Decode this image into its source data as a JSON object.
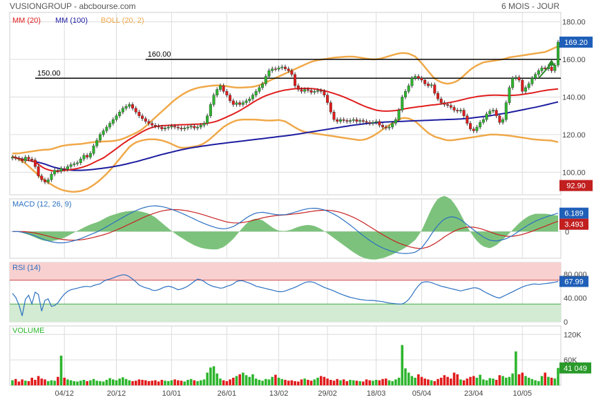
{
  "header": {
    "left": "VUSIONGROUP - abcbourse.com",
    "right": "6 MOIS - JOUR"
  },
  "colors": {
    "up": "#2db52d",
    "down": "#e01c1c",
    "mm20": "#e01c1c",
    "mm100": "#1c1ca0",
    "boll": "#f0a848",
    "macd": "#2a6fc0",
    "signal": "#c82020",
    "hist": "#7cc27c",
    "rsi": "#2a6fc0",
    "grid": "#dcdcdc",
    "axisText": "#444444",
    "price_badge": "#1f5fb8",
    "low_badge": "#c21f1f",
    "arrow": "#2a8a2a"
  },
  "chart_data": [
    {
      "type": "candlestick",
      "panel": "price",
      "legend": [
        {
          "label": "MM (20)",
          "color": "#e01c1c"
        },
        {
          "label": "MM (100)",
          "color": "#1c1ca0"
        },
        {
          "label": "BOLL (20, 2)",
          "color": "#f0a848"
        }
      ],
      "yticks": [
        "180.00",
        "160.00",
        "140.00",
        "120.00",
        "100.00"
      ],
      "ytick_values": [
        180,
        160,
        140,
        120,
        100
      ],
      "ylim": [
        88,
        185
      ],
      "last_label": "169.20",
      "last_value": 169.2,
      "low_label": "92.90",
      "low_value": 92.9,
      "hlines": [
        {
          "label": "160.00",
          "value": 160,
          "start_index": 41
        },
        {
          "label": "150.00",
          "value": 150,
          "start_index": 7
        }
      ],
      "arrow": {
        "from_index": 162,
        "from_value": 150,
        "to_index": 166,
        "to_value": 160
      },
      "closes": [
        108,
        107.5,
        107,
        106,
        108,
        107,
        106.5,
        103,
        98,
        96,
        94.8,
        96,
        99,
        101,
        100.5,
        102,
        101.5,
        103,
        104,
        104.5,
        105,
        107,
        109,
        108,
        110,
        114,
        117,
        120,
        122,
        124,
        126,
        128,
        130,
        132,
        134,
        135,
        136,
        134,
        132,
        130,
        128.5,
        127,
        126,
        125,
        124.5,
        124,
        123,
        123.5,
        124,
        124.5,
        124,
        123.5,
        123,
        123.5,
        124,
        124.5,
        123.5,
        124,
        125,
        126,
        130,
        136,
        141,
        144,
        146,
        143,
        141,
        138,
        136,
        137,
        136,
        137,
        138,
        139,
        141,
        143,
        145,
        147,
        151,
        154,
        155,
        154.8,
        155.5,
        156,
        155,
        154,
        152,
        146,
        144,
        143,
        144,
        143.5,
        142.5,
        143,
        143.5,
        143,
        141,
        137,
        132,
        128,
        127,
        128,
        127.5,
        127,
        127.5,
        128,
        127,
        127.5,
        127,
        126.5,
        126,
        126.5,
        127,
        125,
        124,
        123.5,
        124,
        126,
        128,
        133,
        140,
        143,
        146,
        150,
        151,
        150,
        149,
        147,
        146,
        146.5,
        142,
        139,
        137,
        136,
        135.5,
        134.5,
        133,
        132.5,
        133,
        130,
        126,
        123,
        122,
        124,
        126.5,
        128,
        131,
        132.5,
        133,
        130,
        126.5,
        128,
        137,
        145,
        150,
        150.5,
        149,
        143,
        145,
        147,
        150,
        152,
        154,
        155.5,
        155,
        156,
        154,
        157,
        169.2
      ],
      "ma20": [
        108,
        107.6,
        107.2,
        106.6,
        106.4,
        106.1,
        105.5,
        104,
        102.5,
        101.5,
        101,
        100.5,
        100.5,
        100.8,
        101,
        101.3,
        101.5,
        101.9,
        102.4,
        103,
        103.7,
        104.6,
        105.7,
        106.6,
        107.6,
        109,
        110.4,
        111.9,
        113.4,
        114.9,
        116.3,
        117.6,
        118.8,
        120,
        121.2,
        122.3,
        123.2,
        123.9,
        124.4,
        124.7,
        124.8,
        124.9,
        125,
        125.1,
        125.2,
        125.3,
        125.3,
        125.4,
        125.5,
        125.6,
        125.7,
        125.9,
        126.2,
        126.6,
        127.2,
        128,
        128.9,
        129.8,
        130.7,
        131.7,
        132.8,
        134,
        135.2,
        136.5,
        137.8,
        138.9,
        139.9,
        140.8,
        141.5,
        142.2,
        142.8,
        143.3,
        143.7,
        144,
        144.3,
        144.5,
        144.6,
        144.6,
        144.6,
        144.5,
        144.3,
        143.9,
        143.5,
        143,
        142.4,
        141.8,
        141.1,
        140.4,
        139.6,
        138.7,
        137.8,
        136.8,
        135.9,
        135,
        134.3,
        133.6,
        133,
        132.7,
        132.5,
        132.5,
        132.6,
        132.8,
        133.1,
        133.5,
        133.9,
        134.2,
        134.5,
        134.8,
        135,
        135.3,
        135.6,
        135.8,
        136,
        136.3,
        136.6,
        136.9,
        137.3,
        137.7,
        138.2,
        138.7,
        139.2,
        139.6,
        140,
        140.4,
        140.6,
        140.8,
        140.9,
        141,
        141,
        140.9,
        140.8,
        140.8,
        140.9,
        141,
        141.2,
        141.5,
        141.8,
        142.1,
        142.5,
        142.9,
        143.3,
        143.6,
        143.9,
        144.1,
        144.3
      ],
      "ma100": [
        108,
        107.5,
        107,
        106.5,
        106,
        105.5,
        105,
        104.3,
        103.4,
        102.6,
        102,
        101.5,
        101.2,
        101,
        101,
        101,
        101.2,
        101.4,
        101.7,
        102,
        102.3,
        102.7,
        103.1,
        103.6,
        104.1,
        104.7,
        105.3,
        105.9,
        106.6,
        107.3,
        108,
        108.7,
        109.4,
        110,
        110.6,
        111.2,
        111.8,
        112.3,
        112.8,
        113.2,
        113.6,
        114,
        114.3,
        114.7,
        115,
        115.3,
        115.6,
        115.9,
        116.2,
        116.5,
        116.8,
        117.1,
        117.4,
        117.7,
        118,
        118.3,
        118.6,
        118.9,
        119.2,
        119.5,
        119.8,
        120.2,
        120.6,
        121,
        121.4,
        121.8,
        122.2,
        122.6,
        123,
        123.4,
        123.8,
        124.2,
        124.6,
        125,
        125.3,
        125.6,
        125.9,
        126.1,
        126.3,
        126.5,
        126.7,
        126.8,
        126.9,
        127,
        127.1,
        127.2,
        127.3,
        127.4,
        127.5,
        127.6,
        127.7,
        127.8,
        127.9,
        128,
        128.1,
        128.2,
        128.3,
        128.5,
        128.7,
        129,
        129.3,
        129.6,
        129.9,
        130.3,
        130.7,
        131.1,
        131.5,
        132,
        132.5,
        133,
        133.5,
        134,
        134.5,
        135,
        135.6,
        136.2,
        136.8,
        137.4
      ],
      "boll_upper": [
        110,
        110,
        110.5,
        111,
        111.5,
        112,
        112,
        113,
        114,
        114.5,
        114.8,
        115,
        115.5,
        116,
        116.2,
        116.4,
        116.5,
        117,
        118,
        119.5,
        121,
        123,
        126,
        129,
        132,
        135,
        138,
        140.5,
        142.5,
        144,
        145,
        145.5,
        146,
        146.2,
        146,
        145.5,
        145,
        145,
        145.2,
        145.5,
        146.5,
        148,
        149.5,
        151,
        152.5,
        154,
        155.5,
        157,
        158.5,
        159.5,
        160,
        160.5,
        161,
        161.2,
        161.5,
        161.5,
        161,
        160.5,
        160,
        160.2,
        161,
        162,
        163,
        163.5,
        163,
        161.5,
        158,
        154,
        150,
        148,
        147,
        147.5,
        149,
        152,
        155,
        157,
        158.5,
        159,
        159.5,
        160,
        161,
        161.5,
        162,
        162.5,
        163,
        163.5,
        164,
        165.5,
        167
      ],
      "boll_lower": [
        108.5,
        107,
        105,
        102,
        99,
        96,
        94,
        92,
        90.5,
        89.8,
        89.5,
        90,
        91,
        93,
        95.5,
        98.5,
        102,
        106,
        110,
        114,
        116,
        117,
        117.5,
        117.5,
        117,
        116,
        114.5,
        113,
        113,
        113.5,
        114,
        115.5,
        118,
        121,
        124,
        126,
        127.5,
        128,
        128,
        128,
        127.8,
        127.5,
        127.5,
        127.8,
        127,
        125,
        123,
        121.5,
        121,
        120.5,
        120,
        119.5,
        119,
        118.5,
        118,
        117.5,
        117,
        117.5,
        119,
        121,
        123.5,
        125.5,
        127.5,
        129,
        128.5,
        127,
        124,
        121,
        119,
        118,
        117,
        117,
        117.5,
        118,
        118.5,
        119,
        119.5,
        120,
        120,
        119.8,
        119.5,
        119,
        118.5,
        118,
        117.5,
        117.2,
        117,
        116.8,
        116
      ],
      "xlabels": [
        "04/12",
        "20/12",
        "10/01",
        "26/01",
        "13/02",
        "29/02",
        "18/03",
        "05/04",
        "23/04",
        "10/05"
      ],
      "xlabel_indices": [
        13,
        27,
        41,
        55,
        68,
        81,
        93,
        105,
        118,
        131
      ]
    },
    {
      "type": "line",
      "panel": "macd",
      "title": "MACD (12, 26, 9)",
      "last_macd_label": "6.189",
      "last_signal_label": "3.493",
      "zero_label": "0",
      "ylim": [
        -9,
        11
      ],
      "macd": [
        0,
        0,
        -0.3,
        -0.8,
        -1.5,
        -2.3,
        -3,
        -3.5,
        -3.8,
        -3.8,
        -3.5,
        -3,
        -2.4,
        -1.6,
        -0.8,
        0,
        1,
        2.1,
        3.2,
        4.3,
        5.4,
        6.4,
        7.3,
        8,
        8.5,
        8.7,
        8.5,
        8.1,
        7.5,
        6.8,
        6,
        5.1,
        4.2,
        3.3,
        2.5,
        1.8,
        1.2,
        0.9,
        1.1,
        1.8,
        3,
        4.4,
        5.6,
        6.3,
        6.5,
        6.2,
        5.8,
        5.6,
        5.7,
        6.1,
        6.7,
        7.3,
        7.7,
        7.9,
        7.7,
        7.2,
        6.4,
        5.4,
        4.2,
        2.8,
        1.3,
        -0.3,
        -1.8,
        -3.2,
        -4.4,
        -5.4,
        -6.2,
        -6.8,
        -7.2,
        -7.4,
        -7.3,
        -6.9,
        -5.5,
        -3,
        0,
        2.5,
        4.2,
        5,
        4.8,
        3.8,
        2.3,
        0.8,
        -0.7,
        -2,
        -2.9,
        -3.2,
        -2.9,
        -2.3,
        -1.3,
        0,
        1.3,
        2.5,
        3.5,
        4.3,
        5,
        5.6,
        6.189
      ],
      "signal": [
        0,
        0,
        0,
        -0.2,
        -0.5,
        -0.9,
        -1.4,
        -1.9,
        -2.4,
        -2.7,
        -2.9,
        -2.9,
        -2.8,
        -2.5,
        -2.1,
        -1.6,
        -1.1,
        -0.5,
        0.3,
        1.1,
        2,
        2.9,
        3.8,
        4.7,
        5.5,
        6.2,
        6.8,
        7.2,
        7.4,
        7.4,
        7.2,
        6.9,
        6.5,
        6,
        5.4,
        4.8,
        4.2,
        3.6,
        3.1,
        2.9,
        2.9,
        3.2,
        3.6,
        4.1,
        4.6,
        5,
        5.3,
        5.5,
        5.6,
        5.8,
        6,
        6.3,
        6.6,
        6.9,
        7.1,
        7.2,
        7.1,
        6.8,
        6.3,
        5.6,
        4.8,
        3.8,
        2.7,
        1.5,
        0.3,
        -0.9,
        -2,
        -3,
        -3.9,
        -4.6,
        -5.2,
        -5.6,
        -5.7,
        -5.3,
        -4.4,
        -3.2,
        -1.8,
        -0.6,
        0.4,
        1.1,
        1.5,
        1.5,
        1.2,
        0.6,
        -0.1,
        -0.8,
        -1.3,
        -1.6,
        -1.6,
        -1.3,
        -0.8,
        -0.2,
        0.5,
        1.3,
        2,
        2.8,
        3.493
      ]
    },
    {
      "type": "line",
      "panel": "rsi",
      "title": "RSI (14)",
      "last_label": "67.99",
      "yticks": [
        "80.000",
        "40.000",
        "0"
      ],
      "ytick_values": [
        80,
        40,
        0
      ],
      "overbought": 70,
      "oversold": 30,
      "ylim": [
        0,
        100
      ],
      "values": [
        48,
        38,
        10,
        52,
        30,
        60,
        18,
        45,
        26,
        28,
        40,
        50,
        54,
        56,
        58,
        60,
        59,
        62,
        64,
        70,
        72,
        75,
        78,
        80,
        76,
        70,
        62,
        58,
        56,
        52,
        54,
        58,
        60,
        58,
        54,
        56,
        60,
        66,
        72,
        70,
        64,
        60,
        58,
        56,
        60,
        62,
        68,
        70,
        67,
        64,
        60,
        58,
        56,
        54,
        52,
        50,
        52,
        55,
        58,
        62,
        66,
        68,
        66,
        62,
        58,
        55,
        52,
        48,
        45,
        42,
        40,
        38,
        37,
        36,
        36,
        35,
        34,
        32,
        31,
        30,
        30,
        34,
        45,
        58,
        66,
        68,
        66,
        63,
        60,
        58,
        56,
        54,
        52,
        54,
        56,
        58,
        55,
        50,
        46,
        42,
        40,
        44,
        48,
        52,
        56,
        60,
        62,
        64,
        63,
        64,
        65,
        66,
        67.99
      ]
    },
    {
      "type": "bar",
      "panel": "volume",
      "title": "VOLUME",
      "last_label": "41 049",
      "yticks": [
        "120K",
        "60K"
      ],
      "ytick_values": [
        120000,
        60000
      ],
      "ylim": [
        0,
        140000
      ],
      "values": [
        12000,
        15000,
        9000,
        14000,
        11000,
        10000,
        18000,
        13000,
        22000,
        16000,
        14000,
        10000,
        12000,
        11000,
        20000,
        70000,
        18000,
        14000,
        12000,
        10000,
        9000,
        11000,
        13000,
        10000,
        12000,
        15000,
        11000,
        10000,
        9000,
        13000,
        17000,
        14000,
        12000,
        16000,
        19000,
        15000,
        12000,
        10000,
        11000,
        14000,
        13000,
        12000,
        10000,
        11000,
        12000,
        9000,
        13000,
        11000,
        10000,
        12000,
        14000,
        12000,
        11000,
        9000,
        13000,
        15000,
        12000,
        10000,
        12000,
        14000,
        30000,
        42000,
        45000,
        28000,
        16000,
        12000,
        10000,
        14000,
        18000,
        22000,
        26000,
        30000,
        24000,
        20000,
        26000,
        16000,
        13000,
        11000,
        15000,
        14000,
        20000,
        25000,
        18000,
        15000,
        13000,
        11000,
        12000,
        10000,
        9000,
        14000,
        16000,
        13000,
        11000,
        14000,
        18000,
        22000,
        20000,
        16000,
        13000,
        11000,
        15000,
        12000,
        14000,
        10000,
        13000,
        12000,
        11000,
        10000,
        9000,
        14000,
        12000,
        11000,
        13000,
        12000,
        15000,
        16000,
        12000,
        10000,
        14000,
        18000,
        95000,
        40000,
        30000,
        22000,
        18000,
        26000,
        20000,
        16000,
        14000,
        12000,
        10000,
        15000,
        18000,
        24000,
        20000,
        16000,
        30000,
        26000,
        14000,
        12000,
        16000,
        20000,
        22000,
        18000,
        25000,
        14000,
        12000,
        17000,
        16000,
        13000,
        24000,
        22000,
        18000,
        20000,
        28000,
        80000,
        26000,
        30000,
        22000,
        18000,
        15000,
        12000,
        10000,
        22000,
        30000,
        20000,
        18000,
        16000,
        41049
      ]
    }
  ]
}
